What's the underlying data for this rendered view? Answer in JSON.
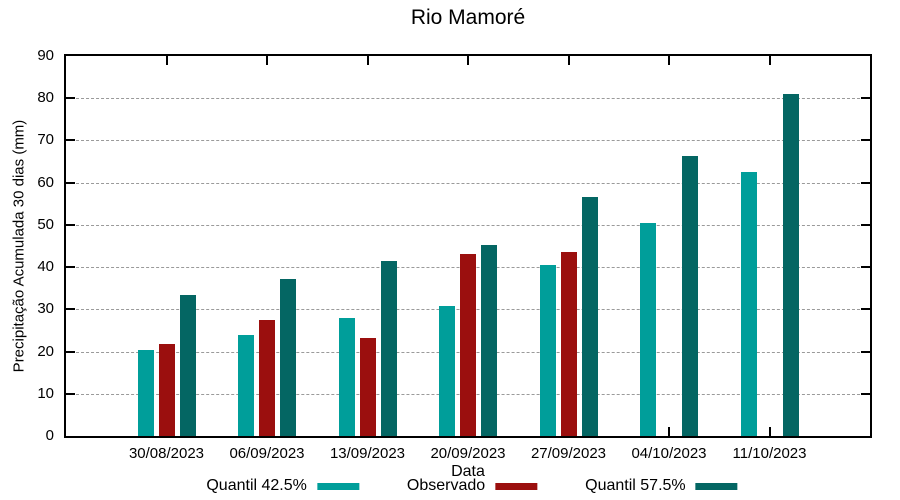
{
  "chart_data": {
    "type": "bar",
    "title": "Rio Mamoré",
    "xlabel": "Data",
    "ylabel": "Precipitação Acumulada 30 dias (mm)",
    "ylim": [
      0,
      90
    ],
    "ytick_step": 10,
    "grid": "horizontal-dashed",
    "legend_position": "bottom-center",
    "frame": "full-box-with-mirrored-ticks",
    "categories": [
      "30/08/2023",
      "06/09/2023",
      "13/09/2023",
      "20/09/2023",
      "27/09/2023",
      "04/10/2023",
      "11/10/2023"
    ],
    "series": [
      {
        "name": "Quantil 42.5%",
        "color": "#009E9A",
        "values": [
          20.3,
          23.9,
          28.0,
          30.9,
          40.5,
          50.4,
          62.6
        ]
      },
      {
        "name": "Observado",
        "color": "#9B0F0E",
        "values": [
          21.8,
          27.4,
          23.1,
          43.1,
          43.7,
          null,
          null
        ]
      },
      {
        "name": "Quantil 57.5%",
        "color": "#046663",
        "values": [
          33.3,
          37.2,
          41.4,
          45.3,
          56.5,
          66.3,
          81.0
        ]
      }
    ],
    "colors": {
      "grid": "#9a9a9a",
      "frame": "#000000",
      "background": "#ffffff",
      "text": "#000000"
    }
  }
}
